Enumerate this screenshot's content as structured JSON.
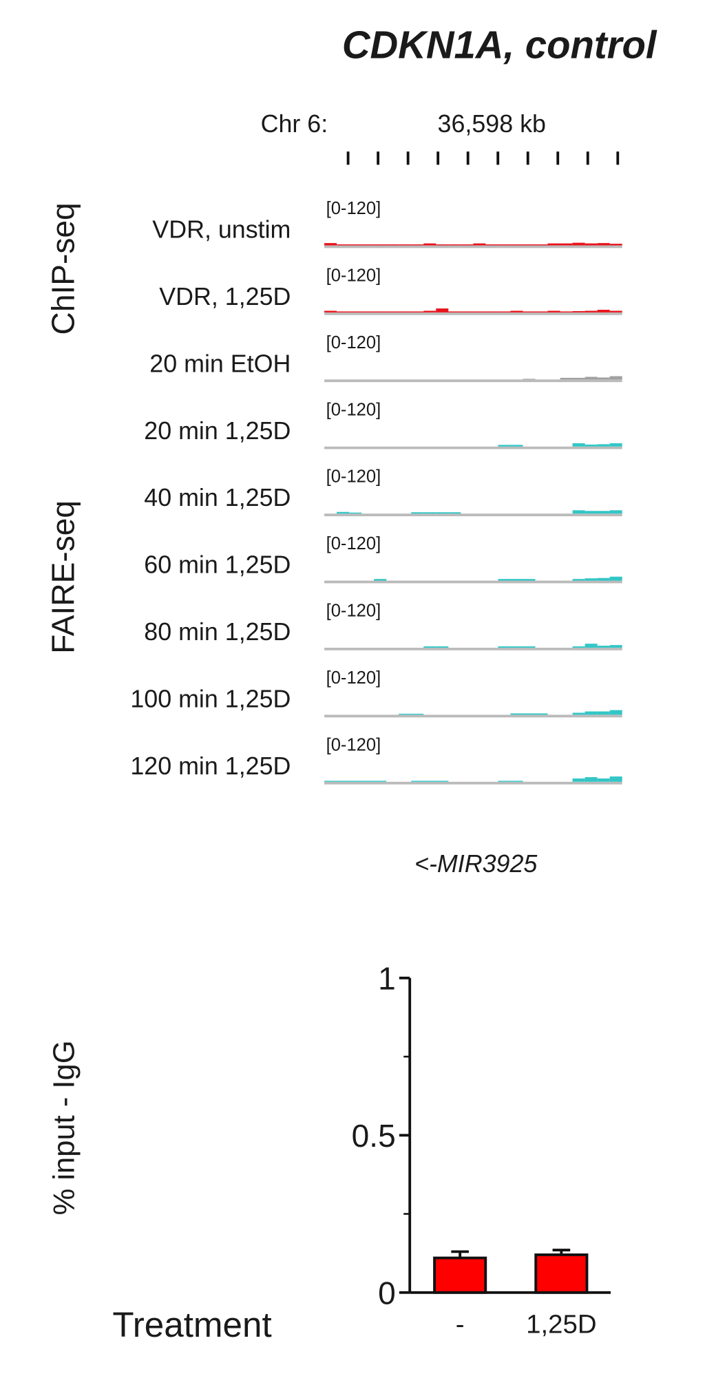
{
  "title": "CDKN1A, control",
  "locus": {
    "chrom": "Chr 6:",
    "position": "36,598 kb"
  },
  "group_labels": [
    "ChIP-seq",
    "FAIRE-seq"
  ],
  "tracks": [
    {
      "name": "VDR, unstim",
      "range_label": "[0-120]",
      "ylim": [
        0,
        120
      ],
      "color": "#e8141c",
      "values": [
        7,
        3,
        3,
        3,
        3,
        3,
        3,
        3,
        6,
        3,
        3,
        3,
        6,
        3,
        3,
        3,
        3,
        3,
        6,
        6,
        8,
        6,
        7,
        5
      ]
    },
    {
      "name": "VDR, 1,25D",
      "range_label": "[0-120]",
      "ylim": [
        0,
        120
      ],
      "color": "#e8141c",
      "values": [
        5,
        3,
        3,
        3,
        3,
        3,
        3,
        3,
        5,
        12,
        3,
        3,
        3,
        3,
        3,
        5,
        3,
        3,
        5,
        3,
        4,
        5,
        8,
        5
      ]
    },
    {
      "name": "20 min EtOH",
      "range_label": "[0-120]",
      "ylim": [
        0,
        120
      ],
      "color": "#a0a0a0",
      "values": [
        0,
        0,
        0,
        0,
        0,
        0,
        0,
        0,
        0,
        0,
        0,
        0,
        0,
        0,
        0,
        0,
        2,
        0,
        0,
        5,
        5,
        8,
        6,
        10
      ]
    },
    {
      "name": "20 min 1,25D",
      "range_label": "[0-120]",
      "ylim": [
        0,
        120
      ],
      "color": "#33c6c6",
      "values": [
        0,
        0,
        0,
        0,
        0,
        0,
        0,
        0,
        0,
        0,
        0,
        0,
        0,
        0,
        5,
        5,
        0,
        0,
        0,
        0,
        10,
        6,
        7,
        10
      ]
    },
    {
      "name": "40 min 1,25D",
      "range_label": "[0-120]",
      "ylim": [
        0,
        120
      ],
      "color": "#33c6c6",
      "values": [
        0,
        5,
        3,
        0,
        0,
        0,
        0,
        4,
        4,
        4,
        4,
        0,
        0,
        0,
        0,
        0,
        0,
        0,
        0,
        0,
        10,
        8,
        8,
        10
      ]
    },
    {
      "name": "60 min 1,25D",
      "range_label": "[0-120]",
      "ylim": [
        0,
        120
      ],
      "color": "#33c6c6",
      "values": [
        0,
        0,
        0,
        0,
        5,
        0,
        0,
        0,
        0,
        0,
        0,
        0,
        0,
        0,
        5,
        5,
        5,
        0,
        0,
        0,
        5,
        7,
        8,
        12
      ]
    },
    {
      "name": "80 min 1,25D",
      "range_label": "[0-120]",
      "ylim": [
        0,
        120
      ],
      "color": "#33c6c6",
      "values": [
        0,
        0,
        0,
        0,
        0,
        0,
        0,
        0,
        4,
        4,
        0,
        0,
        0,
        0,
        4,
        4,
        4,
        0,
        0,
        0,
        4,
        12,
        6,
        8
      ]
    },
    {
      "name": "100 min 1,25D",
      "range_label": "[0-120]",
      "ylim": [
        0,
        120
      ],
      "color": "#33c6c6",
      "values": [
        0,
        0,
        0,
        0,
        0,
        0,
        3,
        3,
        0,
        0,
        0,
        0,
        0,
        0,
        0,
        4,
        4,
        4,
        0,
        0,
        6,
        10,
        10,
        14
      ]
    },
    {
      "name": "120 min 1,25D",
      "range_label": "[0-120]",
      "ylim": [
        0,
        120
      ],
      "color": "#33c6c6",
      "values": [
        3,
        3,
        3,
        3,
        3,
        0,
        0,
        3,
        3,
        3,
        0,
        0,
        0,
        0,
        3,
        3,
        0,
        0,
        0,
        0,
        10,
        14,
        10,
        16
      ]
    }
  ],
  "gene": "<-MIR3925",
  "chart_data": {
    "type": "bar",
    "ylabel": "% input - IgG",
    "xlabel": "Treatment",
    "categories": [
      "-",
      "1,25D"
    ],
    "values": [
      0.11,
      0.12
    ],
    "errors": [
      0.02,
      0.015
    ],
    "color": "#ff0000",
    "ylim": [
      0,
      1
    ],
    "yticks": [
      0,
      0.5,
      1
    ],
    "minor_yticks": [
      0.25,
      0.75
    ]
  }
}
